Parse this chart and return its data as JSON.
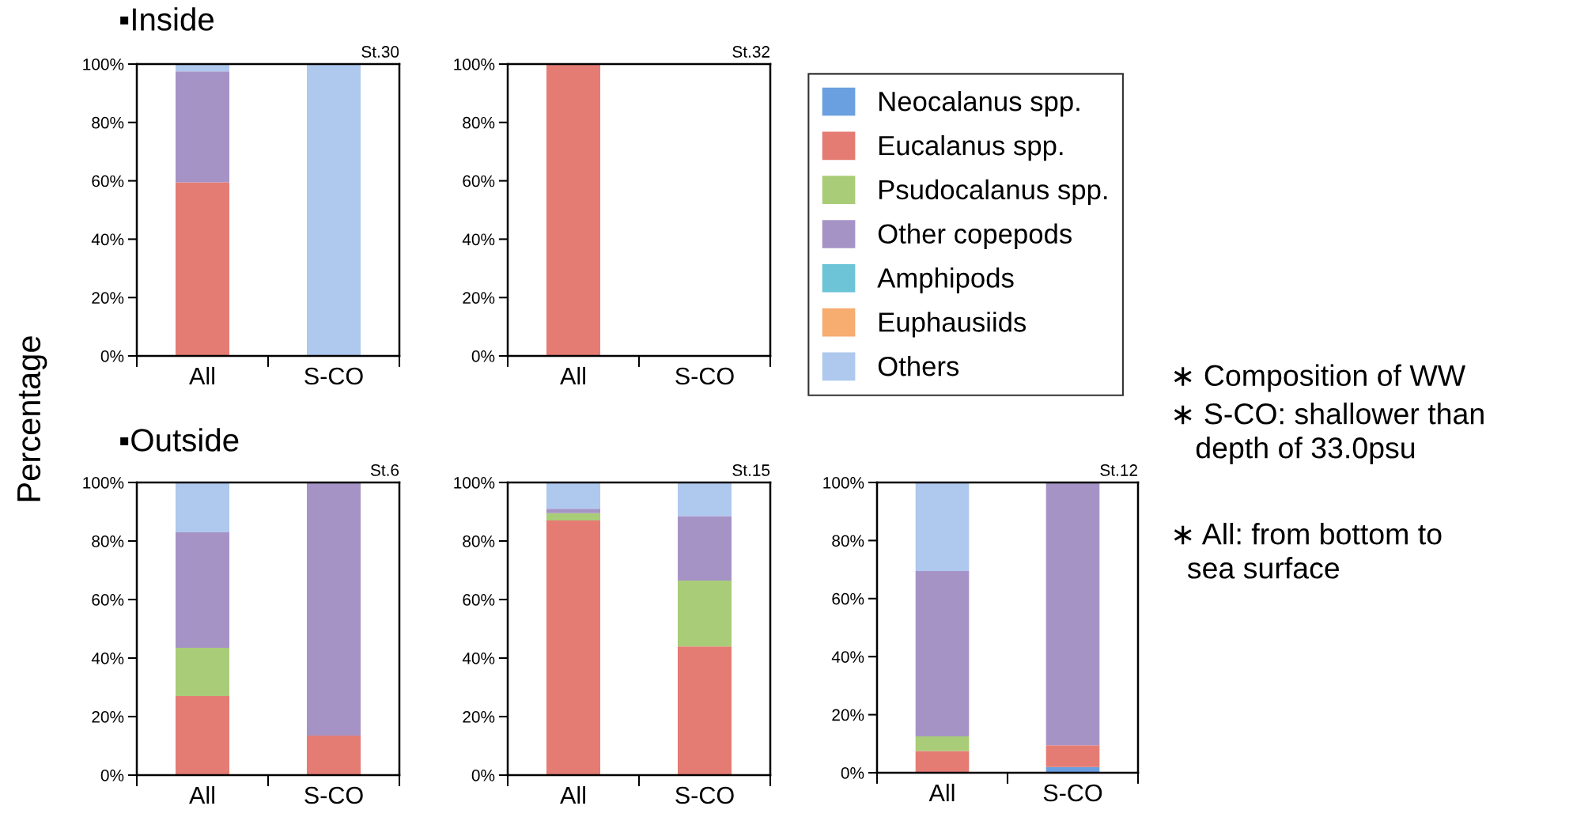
{
  "chart_data": [
    {
      "type": "bar",
      "stacked": true,
      "title": "St.30",
      "ylabel": "Percentage",
      "legend": "right",
      "annotations": [
        "▪Inside"
      ],
      "categories": [
        "All",
        "S-CO"
      ],
      "ylim": [
        0,
        100
      ],
      "yticks": [
        {
          "value": 0,
          "label": "0%"
        },
        {
          "value": 20,
          "label": "20%"
        },
        {
          "value": 40,
          "label": "40%"
        },
        {
          "value": 60,
          "label": "60%"
        },
        {
          "value": 80,
          "label": "80%"
        },
        {
          "value": 100,
          "label": "100%"
        }
      ],
      "grid": false,
      "series": [
        {
          "name": "Neocalanus spp.",
          "color": "#6a9fe0",
          "values": [
            0,
            0
          ]
        },
        {
          "name": "Eucalanus spp.",
          "color": "#e47c74",
          "values": [
            59.5,
            0
          ]
        },
        {
          "name": "Psudocalanus spp.",
          "color": "#a9cc78",
          "values": [
            0,
            0
          ]
        },
        {
          "name": "Other copepods",
          "color": "#a693c6",
          "values": [
            38,
            0
          ]
        },
        {
          "name": "Amphipods",
          "color": "#6cc4d6",
          "values": [
            0,
            0
          ]
        },
        {
          "name": "Euphausiids",
          "color": "#f7ac70",
          "values": [
            0,
            0
          ]
        },
        {
          "name": "Others",
          "color": "#aec8ee",
          "values": [
            2.5,
            100
          ]
        }
      ]
    },
    {
      "type": "bar",
      "stacked": true,
      "title": "St.32",
      "categories": [
        "All",
        "S-CO"
      ],
      "ylim": [
        0,
        100
      ],
      "yticks": [
        {
          "value": 0,
          "label": "0%"
        },
        {
          "value": 20,
          "label": "20%"
        },
        {
          "value": 40,
          "label": "40%"
        },
        {
          "value": 60,
          "label": "60%"
        },
        {
          "value": 80,
          "label": "80%"
        },
        {
          "value": 100,
          "label": "100%"
        }
      ],
      "grid": false,
      "series": [
        {
          "color": "#6a9fe0",
          "values": [
            0,
            0
          ]
        },
        {
          "color": "#e47c74",
          "values": [
            100,
            0
          ]
        },
        {
          "color": "#a9cc78",
          "values": [
            0,
            0
          ]
        },
        {
          "color": "#a693c6",
          "values": [
            0,
            0
          ]
        },
        {
          "color": "#6cc4d6",
          "values": [
            0,
            0
          ]
        },
        {
          "color": "#f7ac70",
          "values": [
            0,
            0
          ]
        },
        {
          "color": "#aec8ee",
          "values": [
            0,
            0
          ]
        }
      ]
    },
    {
      "type": "bar",
      "stacked": true,
      "title": "St.6",
      "annotations": [
        "▪Outside"
      ],
      "categories": [
        "All",
        "S-CO"
      ],
      "ylim": [
        0,
        100
      ],
      "yticks": [
        {
          "value": 0,
          "label": "0%"
        },
        {
          "value": 20,
          "label": "20%"
        },
        {
          "value": 40,
          "label": "40%"
        },
        {
          "value": 60,
          "label": "60%"
        },
        {
          "value": 80,
          "label": "80%"
        },
        {
          "value": 100,
          "label": "100%"
        }
      ],
      "grid": false,
      "series": [
        {
          "color": "#6a9fe0",
          "values": [
            0,
            0
          ]
        },
        {
          "color": "#e47c74",
          "values": [
            27,
            13.5
          ]
        },
        {
          "color": "#a9cc78",
          "values": [
            16.5,
            0
          ]
        },
        {
          "color": "#a693c6",
          "values": [
            39.5,
            86.5
          ]
        },
        {
          "color": "#6cc4d6",
          "values": [
            0,
            0
          ]
        },
        {
          "color": "#f7ac70",
          "values": [
            0,
            0
          ]
        },
        {
          "color": "#aec8ee",
          "values": [
            17,
            0
          ]
        }
      ]
    },
    {
      "type": "bar",
      "stacked": true,
      "title": "St.15",
      "categories": [
        "All",
        "S-CO"
      ],
      "ylim": [
        0,
        100
      ],
      "yticks": [
        {
          "value": 0,
          "label": "0%"
        },
        {
          "value": 20,
          "label": "20%"
        },
        {
          "value": 40,
          "label": "40%"
        },
        {
          "value": 60,
          "label": "60%"
        },
        {
          "value": 80,
          "label": "80%"
        },
        {
          "value": 100,
          "label": "100%"
        }
      ],
      "grid": false,
      "series": [
        {
          "color": "#6a9fe0",
          "values": [
            0,
            0
          ]
        },
        {
          "color": "#e47c74",
          "values": [
            87,
            44
          ]
        },
        {
          "color": "#a9cc78",
          "values": [
            2.5,
            22.5
          ]
        },
        {
          "color": "#a693c6",
          "values": [
            1.5,
            22
          ]
        },
        {
          "color": "#6cc4d6",
          "values": [
            0,
            0
          ]
        },
        {
          "color": "#f7ac70",
          "values": [
            0,
            0
          ]
        },
        {
          "color": "#aec8ee",
          "values": [
            9,
            11.5
          ]
        }
      ]
    },
    {
      "type": "bar",
      "stacked": true,
      "title": "St.12",
      "annotations": [
        "∗ Composition of WW",
        "∗ S-CO: shallower than\n   depth of 33.0psu",
        "∗ All: from bottom to\n  sea surface"
      ],
      "categories": [
        "All",
        "S-CO"
      ],
      "ylim": [
        0,
        100
      ],
      "yticks": [
        {
          "value": 0,
          "label": "0%"
        },
        {
          "value": 20,
          "label": "20%"
        },
        {
          "value": 40,
          "label": "40%"
        },
        {
          "value": 60,
          "label": "60%"
        },
        {
          "value": 80,
          "label": "80%"
        },
        {
          "value": 100,
          "label": "100%"
        }
      ],
      "grid": false,
      "series": [
        {
          "color": "#6a9fe0",
          "values": [
            0,
            2
          ]
        },
        {
          "color": "#e47c74",
          "values": [
            7.5,
            7.5
          ]
        },
        {
          "color": "#a9cc78",
          "values": [
            5,
            0
          ]
        },
        {
          "color": "#a693c6",
          "values": [
            57,
            90.5
          ]
        },
        {
          "color": "#6cc4d6",
          "values": [
            0,
            0
          ]
        },
        {
          "color": "#f7ac70",
          "values": [
            0,
            0
          ]
        },
        {
          "color": "#aec8ee",
          "values": [
            30.5,
            0
          ]
        }
      ]
    }
  ]
}
